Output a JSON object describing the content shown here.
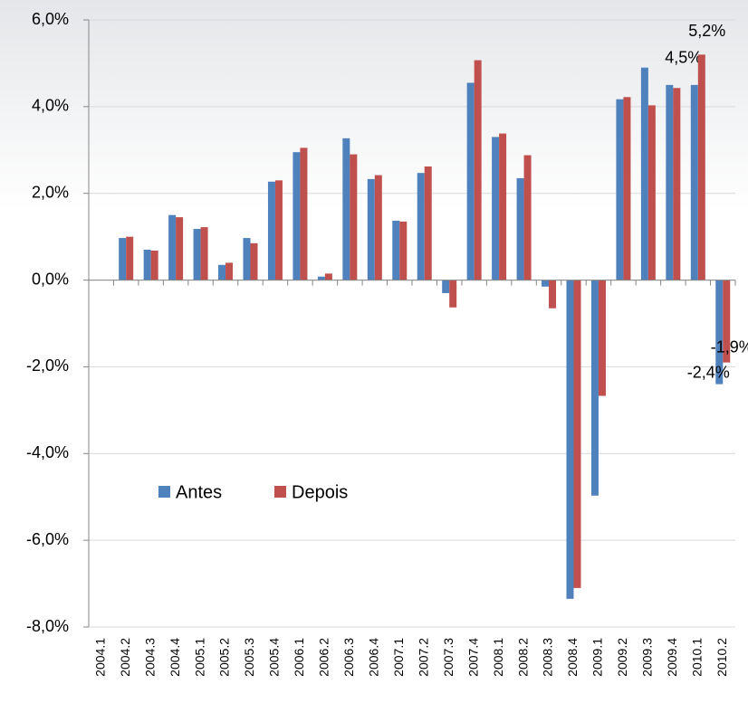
{
  "chart_data": {
    "type": "bar",
    "categories": [
      "2004.1",
      "2004.2",
      "2004.3",
      "2004.4",
      "2005.1",
      "2005.2",
      "2005.3",
      "2005.4",
      "2006.1",
      "2006.2",
      "2006.3",
      "2006.4",
      "2007.1",
      "2007.2",
      "2007.3",
      "2007.4",
      "2008.1",
      "2008.2",
      "2008.3",
      "2008.4",
      "2009.1",
      "2009.2",
      "2009.3",
      "2009.4",
      "2010.1",
      "2010.2"
    ],
    "series": [
      {
        "name": "Antes",
        "color": "#4f81bd",
        "values": [
          null,
          0.97,
          0.7,
          1.5,
          1.18,
          0.35,
          0.97,
          2.27,
          2.95,
          0.08,
          3.27,
          2.33,
          1.37,
          2.47,
          -0.3,
          4.55,
          3.3,
          2.35,
          -0.15,
          -7.35,
          -4.97,
          4.17,
          4.9,
          4.5,
          4.5,
          -2.4
        ],
        "value_labels": [
          null,
          null,
          null,
          null,
          null,
          null,
          null,
          null,
          null,
          null,
          null,
          null,
          null,
          null,
          null,
          null,
          null,
          null,
          null,
          null,
          null,
          null,
          null,
          null,
          "4,5%",
          "-2,4%"
        ]
      },
      {
        "name": "Depois",
        "color": "#c0504d",
        "values": [
          null,
          1.0,
          0.68,
          1.45,
          1.22,
          0.4,
          0.85,
          2.3,
          3.05,
          0.15,
          2.9,
          2.42,
          1.35,
          2.62,
          -0.63,
          5.07,
          3.38,
          2.88,
          -0.65,
          -7.1,
          -2.67,
          4.22,
          4.03,
          4.43,
          5.2,
          -1.9
        ],
        "value_labels": [
          null,
          null,
          null,
          null,
          null,
          null,
          null,
          null,
          null,
          null,
          null,
          null,
          null,
          null,
          null,
          null,
          null,
          null,
          null,
          null,
          null,
          null,
          null,
          null,
          "5,2%",
          "-1,9%"
        ]
      }
    ],
    "ylim": [
      -8,
      6
    ],
    "yticks": [
      {
        "value": -8,
        "label": "-8,0%"
      },
      {
        "value": -6,
        "label": "-6,0%"
      },
      {
        "value": -4,
        "label": "-4,0%"
      },
      {
        "value": -2,
        "label": "-2,0%"
      },
      {
        "value": 0,
        "label": "0,0%"
      },
      {
        "value": 2,
        "label": "2,0%"
      },
      {
        "value": 4,
        "label": "4,0%"
      },
      {
        "value": 6,
        "label": "6,0%"
      }
    ],
    "grid": true,
    "legend": "center-left"
  }
}
